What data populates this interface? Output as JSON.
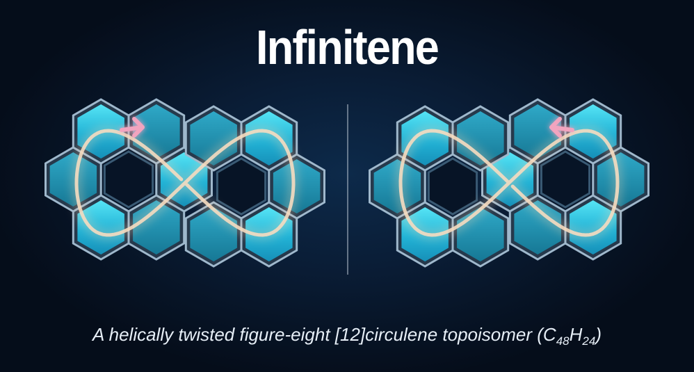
{
  "title": "Infinitene",
  "caption": {
    "main": "A helically twisted figure-eight [12]circulene topoisomer (C",
    "c_count": "48",
    "h_label": "H",
    "h_count": "24",
    "close": ")"
  },
  "colors": {
    "background": "#071426",
    "hex_fill": "#1fb4d6",
    "hex_bright": "#4fe6f7",
    "hex_rim": "#8fb0c4",
    "loop": "#f3d6b8",
    "arrow": "#f2a4bf"
  },
  "icons": [
    "left-enantiomer-icon",
    "right-enantiomer-icon",
    "mirror-plane-divider",
    "clockwise-arrow-icon",
    "counterclockwise-arrow-icon"
  ]
}
